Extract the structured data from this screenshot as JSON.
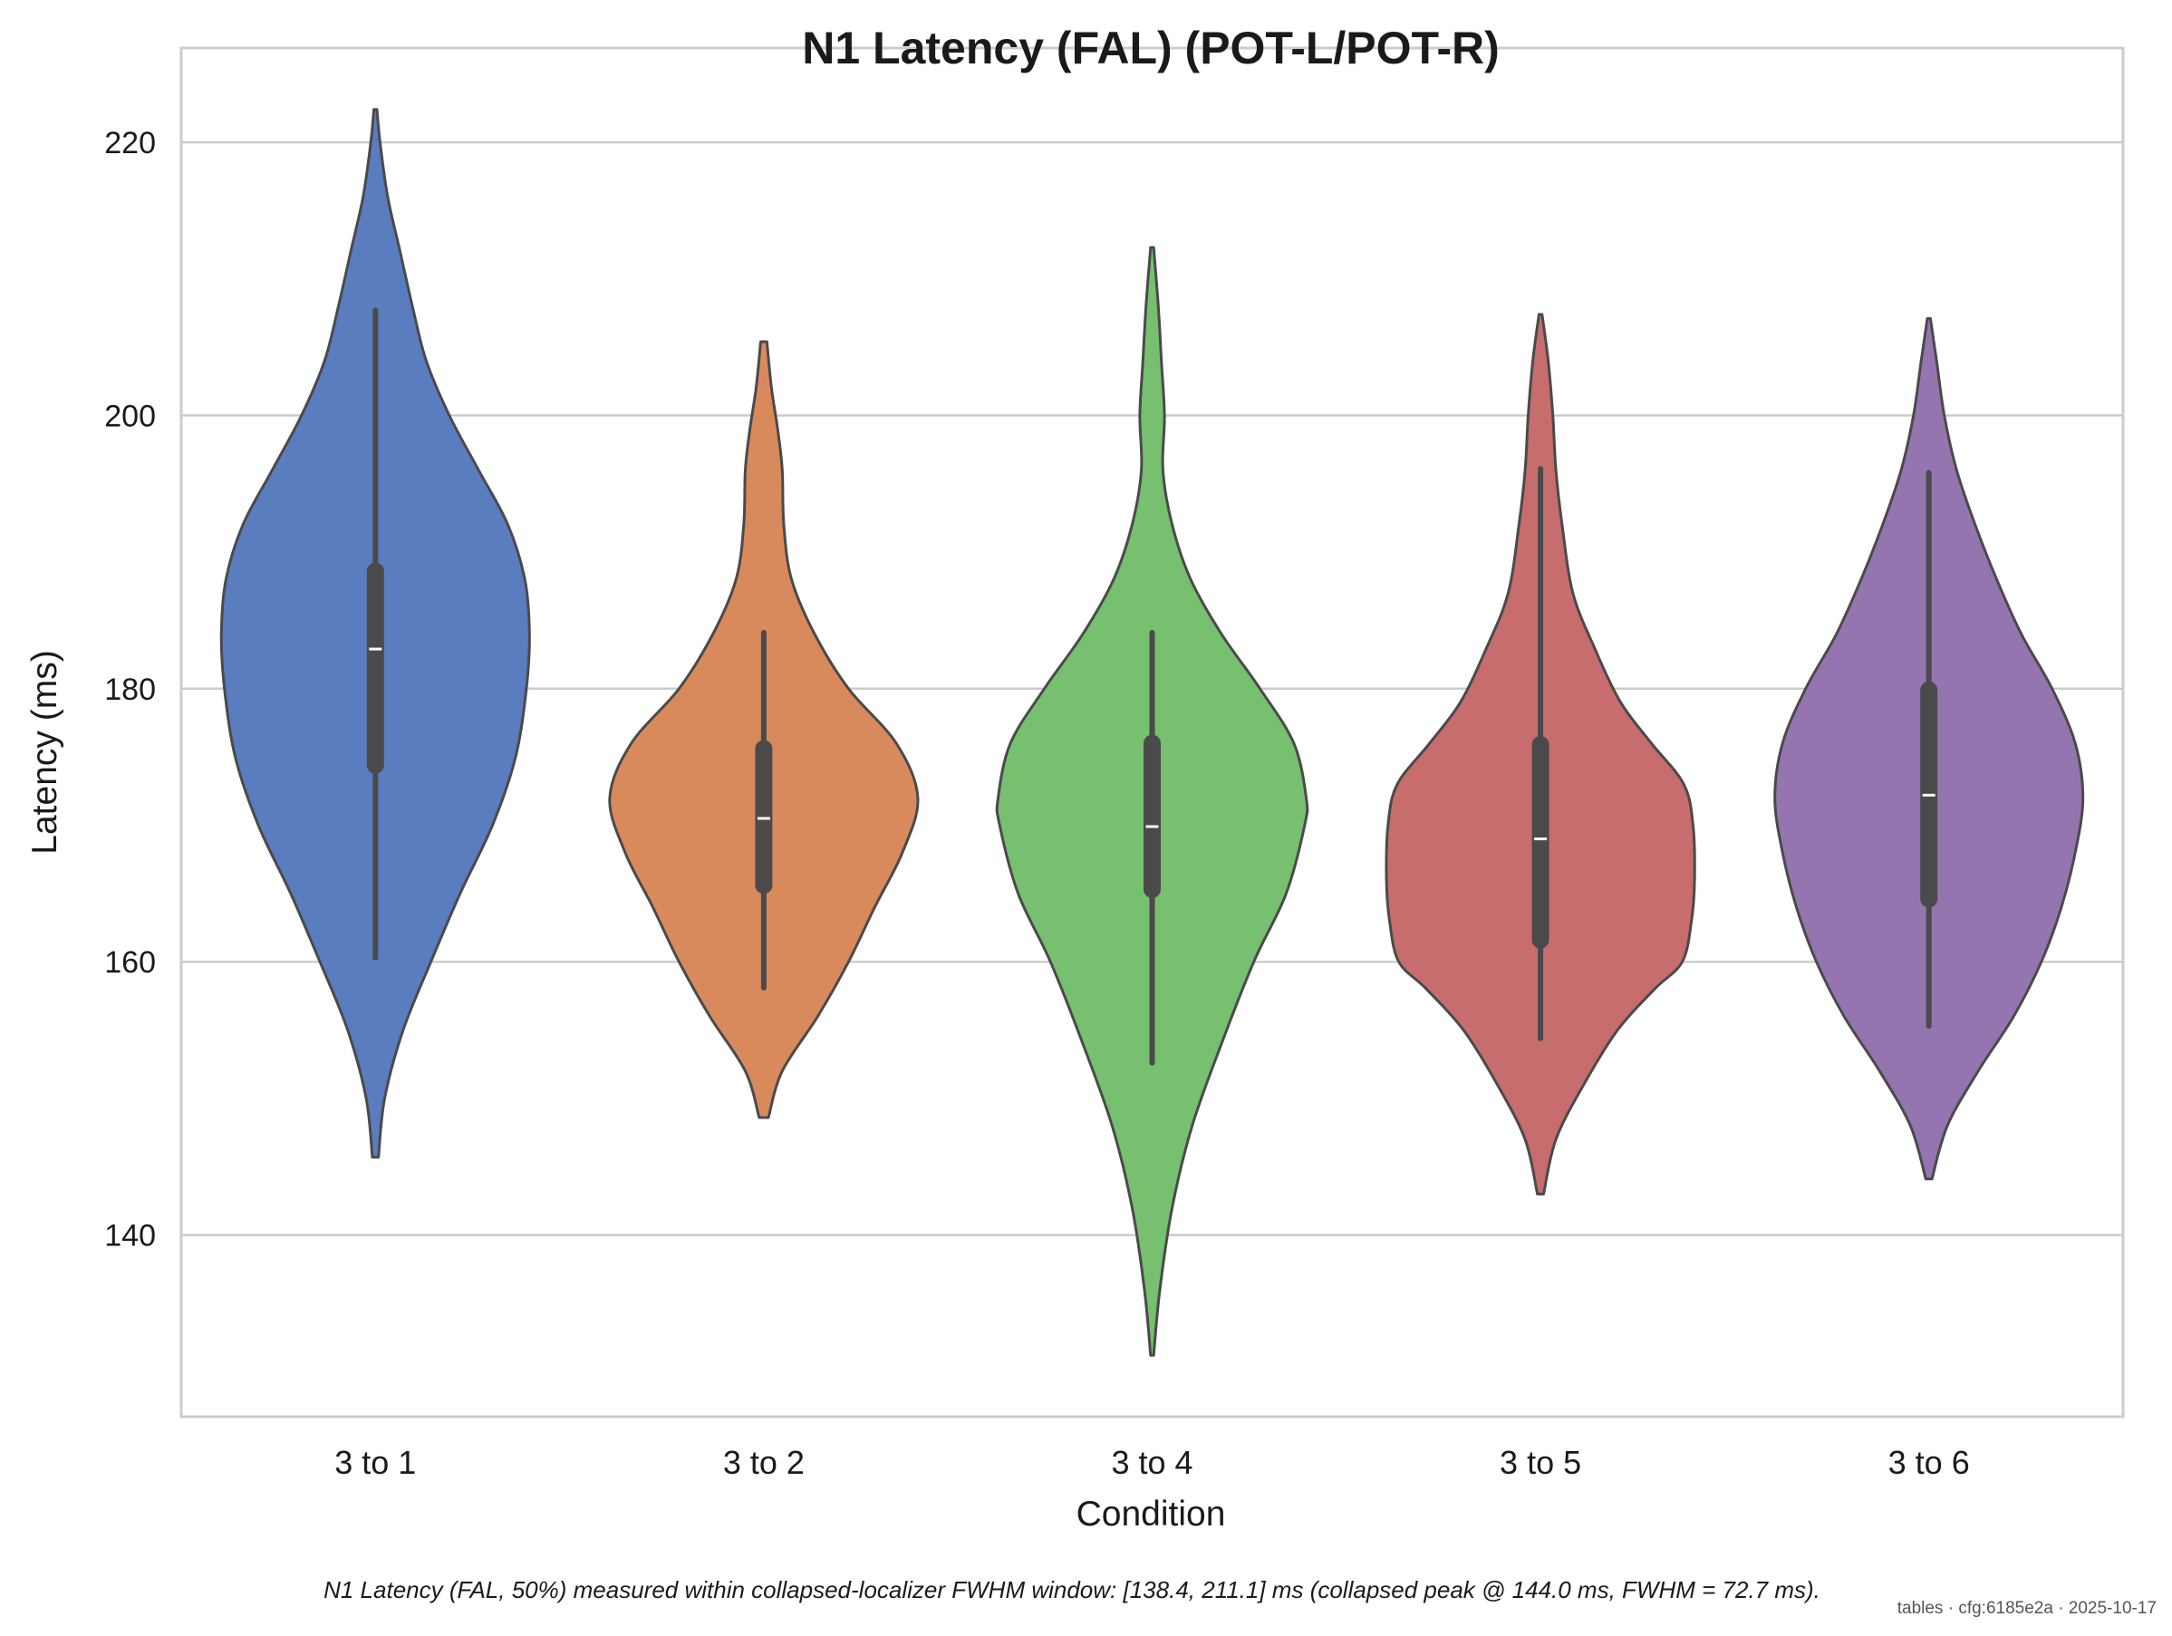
{
  "chart_data": {
    "type": "violin",
    "title": "N1 Latency (FAL) (POT-L/POT-R)",
    "xlabel": "Condition",
    "ylabel": "Latency (ms)",
    "ylim": [
      126.7,
      226.9
    ],
    "yticks": [
      140,
      160,
      180,
      200,
      220
    ],
    "grid": "horizontal",
    "categories": [
      "3 to 1",
      "3 to 2",
      "3 to 4",
      "3 to 5",
      "3 to 6"
    ],
    "series": [
      {
        "color": "#5a7dc0",
        "min": 145.7,
        "max": 222.4,
        "whisker_low": 160.3,
        "whisker_high": 207.7,
        "q1": 174.4,
        "median": 182.9,
        "q3": 188.6,
        "density": [
          [
            145.7,
            0.02
          ],
          [
            150,
            0.06
          ],
          [
            155,
            0.18
          ],
          [
            160,
            0.36
          ],
          [
            165,
            0.55
          ],
          [
            170,
            0.76
          ],
          [
            175,
            0.91
          ],
          [
            180,
            0.98
          ],
          [
            184,
            1.0
          ],
          [
            188,
            0.97
          ],
          [
            192,
            0.86
          ],
          [
            196,
            0.67
          ],
          [
            200,
            0.48
          ],
          [
            204,
            0.33
          ],
          [
            208,
            0.24
          ],
          [
            212,
            0.16
          ],
          [
            216,
            0.08
          ],
          [
            220,
            0.03
          ],
          [
            222.4,
            0.01
          ]
        ]
      },
      {
        "color": "#d98a5c",
        "min": 148.6,
        "max": 205.4,
        "whisker_low": 158.1,
        "whisker_high": 184.1,
        "q1": 165.6,
        "median": 170.5,
        "q3": 175.6,
        "density": [
          [
            148.6,
            0.03
          ],
          [
            152,
            0.12
          ],
          [
            156,
            0.35
          ],
          [
            160,
            0.55
          ],
          [
            164,
            0.72
          ],
          [
            168,
            0.9
          ],
          [
            172,
            1.0
          ],
          [
            176,
            0.86
          ],
          [
            180,
            0.55
          ],
          [
            184,
            0.33
          ],
          [
            188,
            0.18
          ],
          [
            192,
            0.13
          ],
          [
            196,
            0.12
          ],
          [
            199,
            0.09
          ],
          [
            202,
            0.05
          ],
          [
            205.4,
            0.02
          ]
        ]
      },
      {
        "color": "#76c06f",
        "min": 131.2,
        "max": 212.3,
        "whisker_low": 152.6,
        "whisker_high": 184.1,
        "q1": 165.3,
        "median": 169.9,
        "q3": 176.0,
        "density": [
          [
            131.2,
            0.01
          ],
          [
            136,
            0.05
          ],
          [
            142,
            0.13
          ],
          [
            148,
            0.26
          ],
          [
            154,
            0.45
          ],
          [
            160,
            0.66
          ],
          [
            165,
            0.87
          ],
          [
            170,
            0.99
          ],
          [
            172,
            1.0
          ],
          [
            176,
            0.92
          ],
          [
            180,
            0.7
          ],
          [
            184,
            0.45
          ],
          [
            188,
            0.25
          ],
          [
            192,
            0.13
          ],
          [
            196,
            0.07
          ],
          [
            200,
            0.08
          ],
          [
            204,
            0.06
          ],
          [
            208,
            0.04
          ],
          [
            212.3,
            0.01
          ]
        ]
      },
      {
        "color": "#c76d6d",
        "min": 143.0,
        "max": 207.4,
        "whisker_low": 154.4,
        "whisker_high": 196.1,
        "q1": 161.6,
        "median": 169.0,
        "q3": 175.9,
        "density": [
          [
            143,
            0.02
          ],
          [
            147,
            0.1
          ],
          [
            151,
            0.28
          ],
          [
            155,
            0.5
          ],
          [
            158,
            0.74
          ],
          [
            160,
            0.92
          ],
          [
            163,
            0.98
          ],
          [
            166,
            1.0
          ],
          [
            170,
            0.99
          ],
          [
            173,
            0.93
          ],
          [
            176,
            0.72
          ],
          [
            179,
            0.52
          ],
          [
            183,
            0.35
          ],
          [
            187,
            0.21
          ],
          [
            192,
            0.14
          ],
          [
            196,
            0.1
          ],
          [
            200,
            0.08
          ],
          [
            204,
            0.05
          ],
          [
            207.4,
            0.01
          ]
        ]
      },
      {
        "color": "#9575b0",
        "min": 144.1,
        "max": 207.1,
        "whisker_low": 155.3,
        "whisker_high": 195.8,
        "q1": 164.6,
        "median": 172.2,
        "q3": 179.9,
        "density": [
          [
            144.1,
            0.02
          ],
          [
            148,
            0.12
          ],
          [
            152,
            0.32
          ],
          [
            156,
            0.55
          ],
          [
            160,
            0.73
          ],
          [
            164,
            0.86
          ],
          [
            168,
            0.95
          ],
          [
            172,
            1.0
          ],
          [
            176,
            0.95
          ],
          [
            180,
            0.8
          ],
          [
            184,
            0.6
          ],
          [
            188,
            0.44
          ],
          [
            192,
            0.3
          ],
          [
            196,
            0.18
          ],
          [
            200,
            0.1
          ],
          [
            204,
            0.05
          ],
          [
            207.1,
            0.01
          ]
        ]
      }
    ]
  },
  "caption": "N1 Latency (FAL, 50%) measured within collapsed-localizer FWHM window: [138.4, 211.1] ms (collapsed peak @ 144.0 ms, FWHM = 72.7 ms).",
  "stamp": "tables · cfg:6185e2a · 2025-10-17"
}
